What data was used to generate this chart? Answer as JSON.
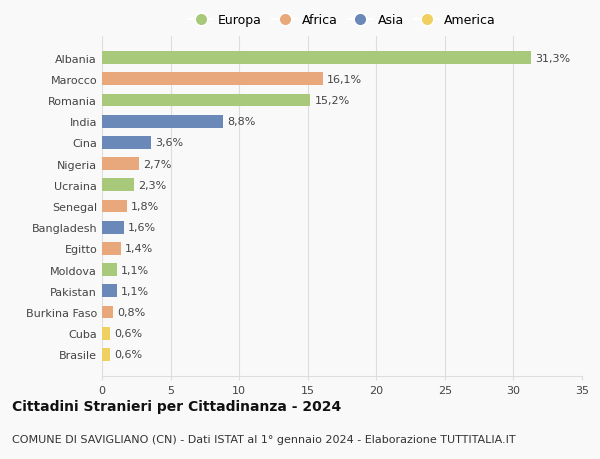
{
  "countries": [
    "Albania",
    "Marocco",
    "Romania",
    "India",
    "Cina",
    "Nigeria",
    "Ucraina",
    "Senegal",
    "Bangladesh",
    "Egitto",
    "Moldova",
    "Pakistan",
    "Burkina Faso",
    "Cuba",
    "Brasile"
  ],
  "values": [
    31.3,
    16.1,
    15.2,
    8.8,
    3.6,
    2.7,
    2.3,
    1.8,
    1.6,
    1.4,
    1.1,
    1.1,
    0.8,
    0.6,
    0.6
  ],
  "labels": [
    "31,3%",
    "16,1%",
    "15,2%",
    "8,8%",
    "3,6%",
    "2,7%",
    "2,3%",
    "1,8%",
    "1,6%",
    "1,4%",
    "1,1%",
    "1,1%",
    "0,8%",
    "0,6%",
    "0,6%"
  ],
  "continents": [
    "Europa",
    "Africa",
    "Europa",
    "Asia",
    "Asia",
    "Africa",
    "Europa",
    "Africa",
    "Asia",
    "Africa",
    "Europa",
    "Asia",
    "Africa",
    "America",
    "America"
  ],
  "continent_colors": {
    "Europa": "#a8c87a",
    "Africa": "#e8a87c",
    "Asia": "#6b89b8",
    "America": "#f0d060"
  },
  "legend_order": [
    "Europa",
    "Africa",
    "Asia",
    "America"
  ],
  "title": "Cittadini Stranieri per Cittadinanza - 2024",
  "subtitle": "COMUNE DI SAVIGLIANO (CN) - Dati ISTAT al 1° gennaio 2024 - Elaborazione TUTTITALIA.IT",
  "xlim": [
    0,
    35
  ],
  "xticks": [
    0,
    5,
    10,
    15,
    20,
    25,
    30,
    35
  ],
  "background_color": "#f9f9f9",
  "grid_color": "#dddddd",
  "bar_height": 0.6,
  "title_fontsize": 10,
  "subtitle_fontsize": 8,
  "label_fontsize": 8,
  "tick_fontsize": 8,
  "legend_fontsize": 9
}
